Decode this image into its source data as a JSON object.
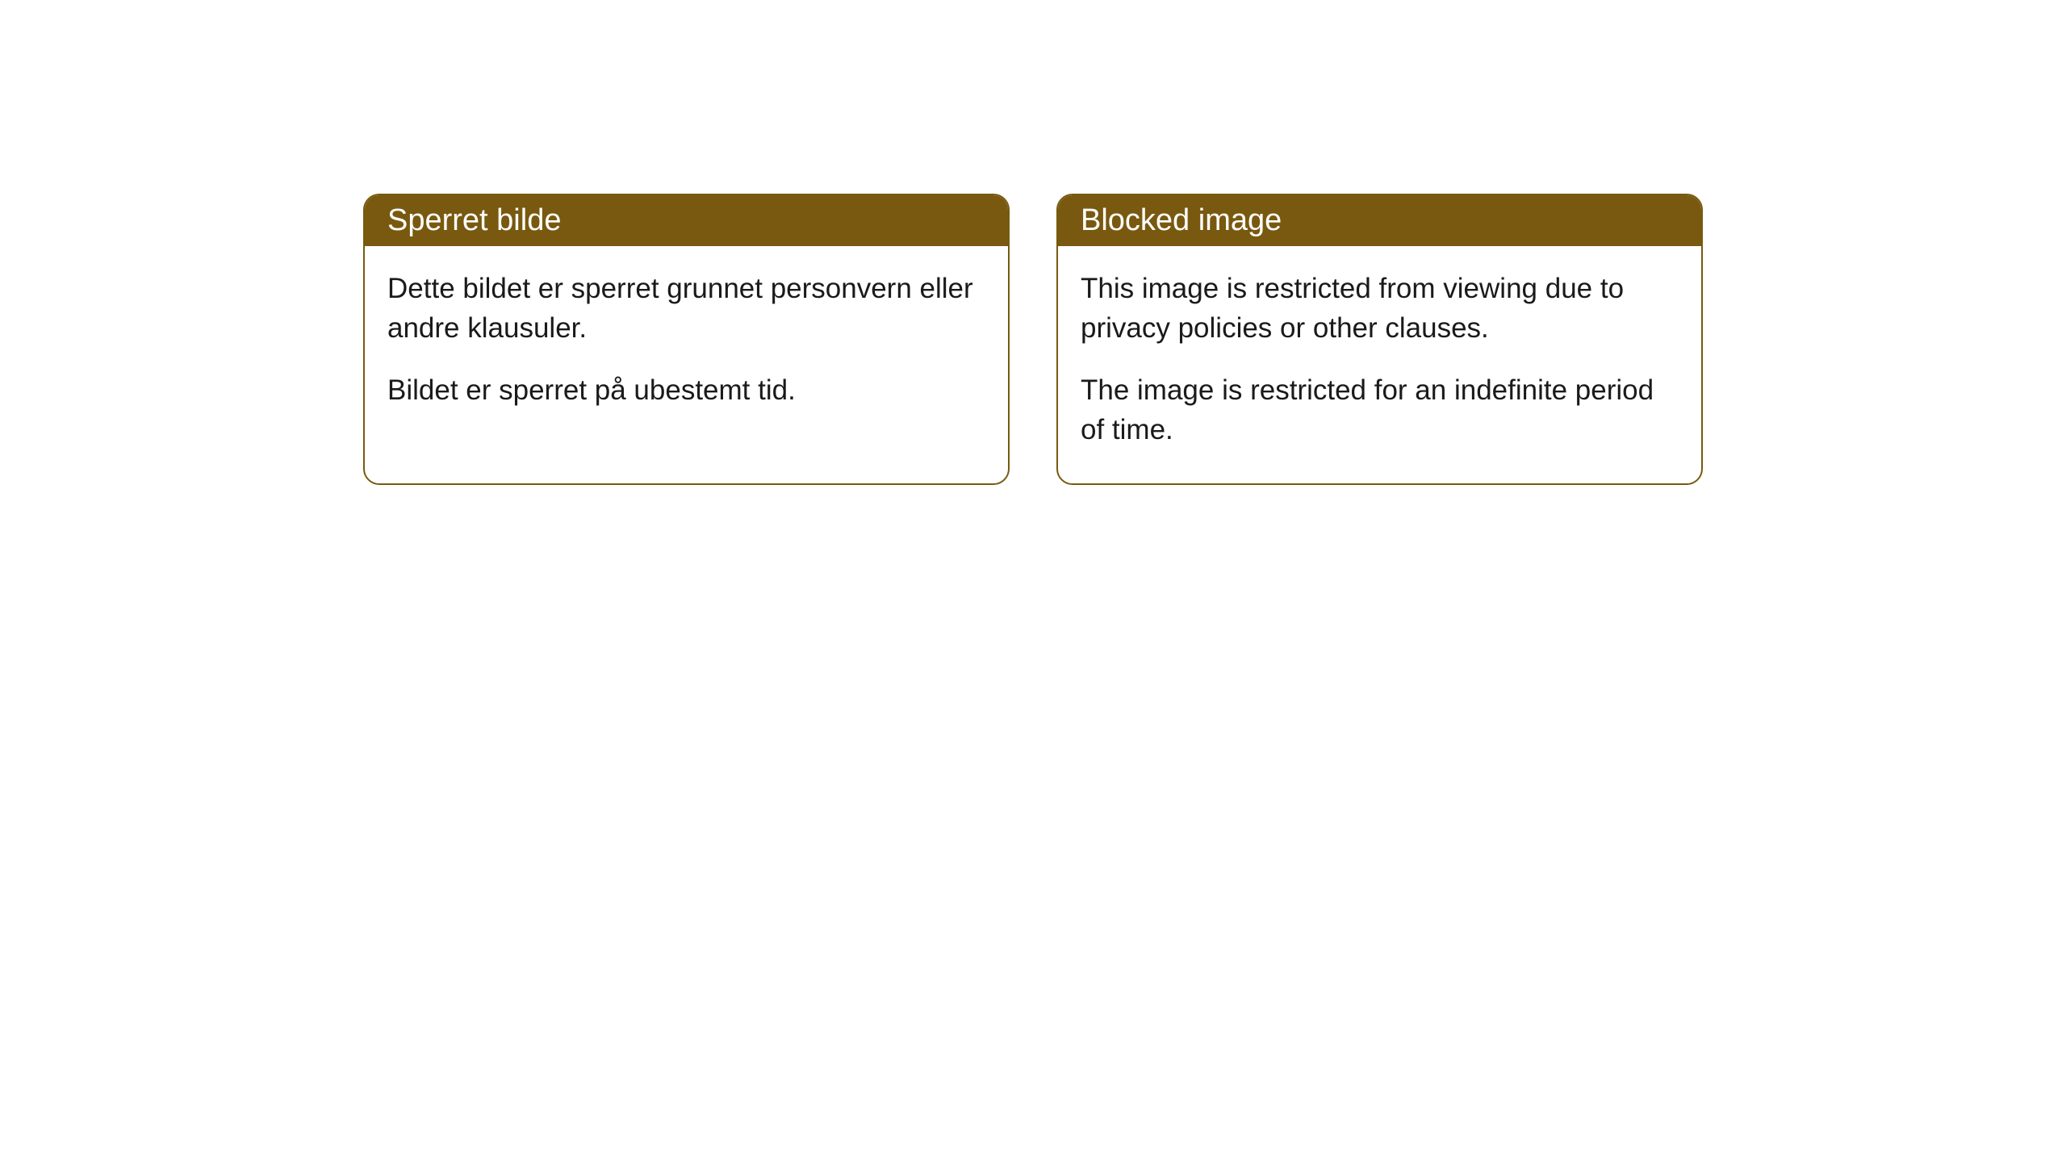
{
  "cards": [
    {
      "title": "Sperret bilde",
      "paragraph1": "Dette bildet er sperret grunnet personvern eller andre klausuler.",
      "paragraph2": "Bildet er sperret på ubestemt tid."
    },
    {
      "title": "Blocked image",
      "paragraph1": "This image is restricted from viewing due to privacy policies or other clauses.",
      "paragraph2": "The image is restricted for an indefinite period of time."
    }
  ],
  "styling": {
    "header_background_color": "#78590f",
    "header_text_color": "#ffffff",
    "border_color": "#78590f",
    "body_text_color": "#1a1a1a",
    "card_background_color": "#ffffff",
    "page_background_color": "#ffffff",
    "border_radius": 20,
    "header_fontsize": 38,
    "body_fontsize": 35
  }
}
